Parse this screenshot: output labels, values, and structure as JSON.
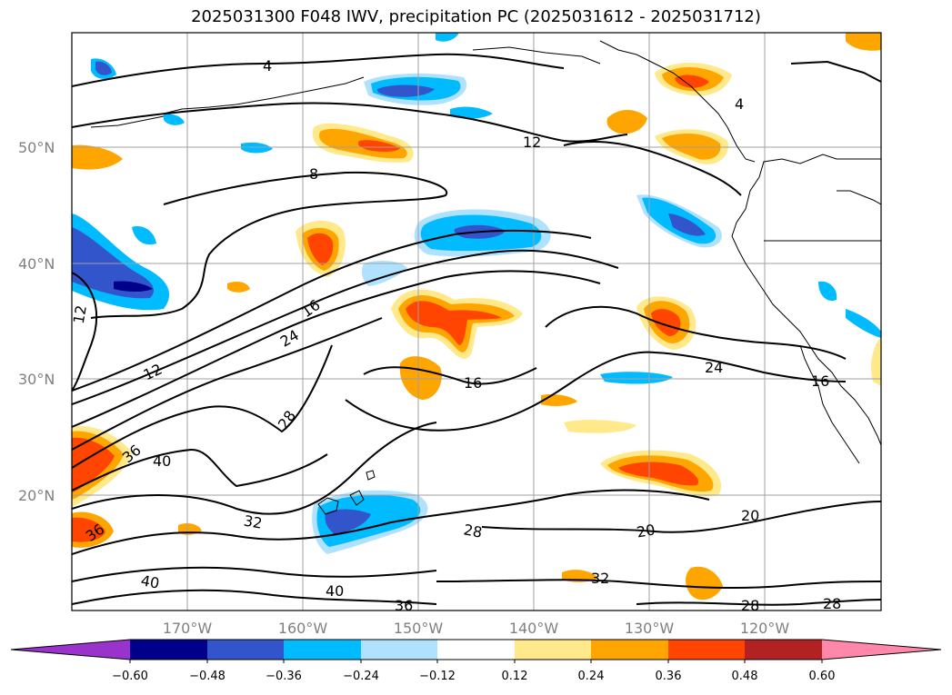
{
  "title": "2025031300 F048 IWV, precipitation PC (2025031612 - 2025031712)",
  "map": {
    "lat_labels": [
      "50°N",
      "40°N",
      "30°N",
      "20°N"
    ],
    "lon_labels": [
      "170°W",
      "160°W",
      "150°W",
      "140°W",
      "130°W",
      "120°W"
    ],
    "grid_color": "#a0a0a0",
    "contour_color": "#000000",
    "contour_labels": [
      "4",
      "12",
      "8",
      "4",
      "12",
      "16",
      "24",
      "12",
      "28",
      "36",
      "40",
      "36",
      "32",
      "40",
      "40",
      "36",
      "16",
      "28",
      "20",
      "20",
      "24",
      "16",
      "32",
      "28",
      "28"
    ]
  },
  "colorbar": {
    "tick_labels": [
      "−0.60",
      "−0.48",
      "−0.36",
      "−0.24",
      "−0.12",
      "0.12",
      "0.24",
      "0.36",
      "0.48",
      "0.60"
    ],
    "colors": [
      "#9933cc",
      "#00008b",
      "#3355cc",
      "#00bbff",
      "#b0e2ff",
      "#ffffff",
      "#ffe98a",
      "#ffa500",
      "#ff4500",
      "#b22222",
      "#ff88aa"
    ]
  }
}
